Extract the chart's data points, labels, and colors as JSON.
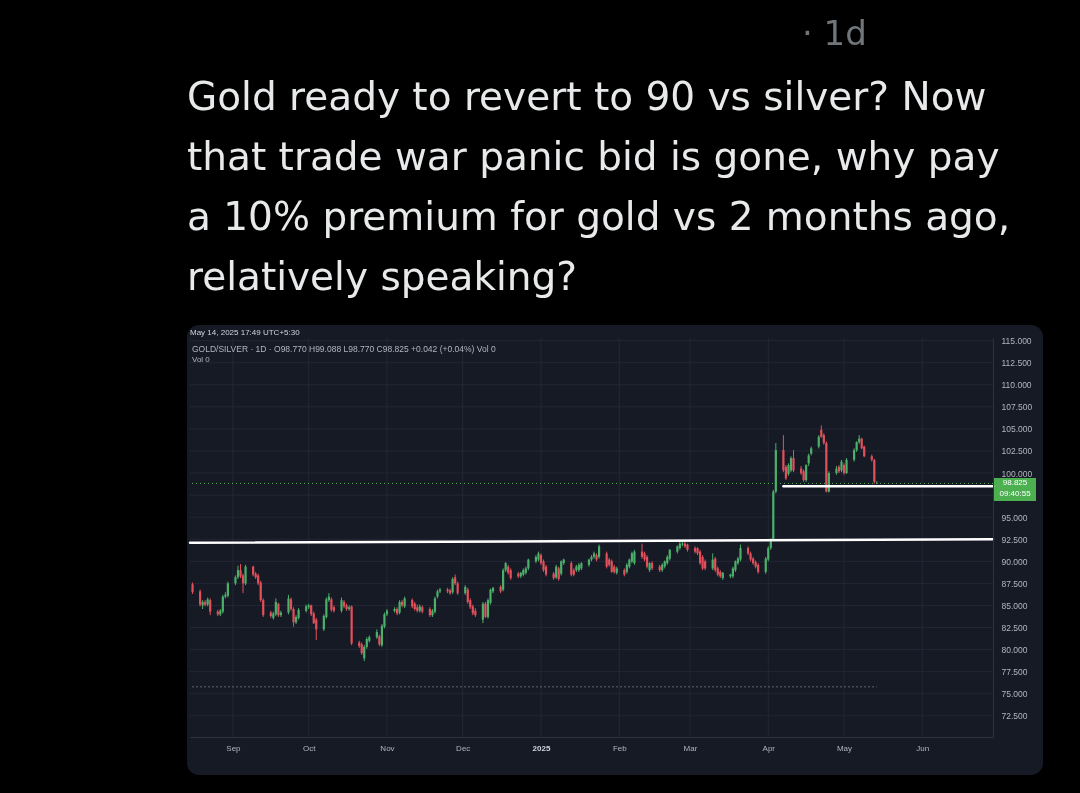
{
  "chart_data": {
    "type": "candlestick",
    "title": "Gold ready to revert to 90 vs silver? Now that trade war panic bid is gone, why pay a 10% premium for gold vs 2 months ago, relatively speaking?",
    "subtitle": "GOLD/SILVER · 1D · O98.770 H99.088 L98.770 C98.825 +0.042 (+0.04%) Vol 0",
    "annotations": [
      "May 14, 2025 17:49 UTC+5:30",
      "Vol 0",
      "· 1d",
      "09:40:55"
    ],
    "xlim": [
      "2024-08-15",
      "2025-06-29"
    ],
    "xticks": [
      {
        "value": "2024-09-01",
        "label": "Sep"
      },
      {
        "value": "2024-10-01",
        "label": "Oct"
      },
      {
        "value": "2024-11-01",
        "label": "Nov"
      },
      {
        "value": "2024-12-01",
        "label": "Dec"
      },
      {
        "value": "2025-01-01",
        "label": "2025"
      },
      {
        "value": "2025-02-01",
        "label": "Feb"
      },
      {
        "value": "2025-03-01",
        "label": "Mar"
      },
      {
        "value": "2025-04-01",
        "label": "Apr"
      },
      {
        "value": "2025-05-01",
        "label": "May"
      },
      {
        "value": "2025-06-01",
        "label": "Jun"
      }
    ],
    "ylim": [
      70.1,
      115.3
    ],
    "yticks": [
      {
        "value": 72.5,
        "label": "72.500"
      },
      {
        "value": 75,
        "label": "75.000"
      },
      {
        "value": 77.5,
        "label": "77.500"
      },
      {
        "value": 80,
        "label": "80.000"
      },
      {
        "value": 82.5,
        "label": "82.500"
      },
      {
        "value": 85,
        "label": "85.000"
      },
      {
        "value": 87.5,
        "label": "87.500"
      },
      {
        "value": 90,
        "label": "90.000"
      },
      {
        "value": 92.5,
        "label": "92.500"
      },
      {
        "value": 95,
        "label": "95.000"
      },
      {
        "value": 97.5,
        "label": null
      },
      {
        "value": 100,
        "label": "100.000"
      },
      {
        "value": 102.5,
        "label": "102.500"
      },
      {
        "value": 105,
        "label": "105.000"
      },
      {
        "value": 107.5,
        "label": "107.500"
      },
      {
        "value": 110,
        "label": "110.000"
      },
      {
        "value": 112.5,
        "label": "112.500"
      },
      {
        "value": 115,
        "label": "115.000"
      }
    ],
    "grid": true,
    "x": [
      "2024-08-16",
      "2024-08-19",
      "2024-08-20",
      "2024-08-21",
      "2024-08-22",
      "2024-08-23",
      "2024-08-26",
      "2024-08-27",
      "2024-08-28",
      "2024-08-29",
      "2024-08-30",
      "2024-09-02",
      "2024-09-03",
      "2024-09-04",
      "2024-09-05",
      "2024-09-06",
      "2024-09-09",
      "2024-09-10",
      "2024-09-11",
      "2024-09-12",
      "2024-09-13",
      "2024-09-16",
      "2024-09-17",
      "2024-09-18",
      "2024-09-19",
      "2024-09-20",
      "2024-09-23",
      "2024-09-24",
      "2024-09-25",
      "2024-09-26",
      "2024-09-27",
      "2024-09-30",
      "2024-10-01",
      "2024-10-02",
      "2024-10-03",
      "2024-10-04",
      "2024-10-07",
      "2024-10-08",
      "2024-10-09",
      "2024-10-10",
      "2024-10-11",
      "2024-10-14",
      "2024-10-15",
      "2024-10-16",
      "2024-10-17",
      "2024-10-18",
      "2024-10-21",
      "2024-10-22",
      "2024-10-23",
      "2024-10-24",
      "2024-10-25",
      "2024-10-28",
      "2024-10-29",
      "2024-10-30",
      "2024-10-31",
      "2024-11-01",
      "2024-11-04",
      "2024-11-05",
      "2024-11-06",
      "2024-11-07",
      "2024-11-08",
      "2024-11-11",
      "2024-11-12",
      "2024-11-13",
      "2024-11-14",
      "2024-11-15",
      "2024-11-18",
      "2024-11-19",
      "2024-11-20",
      "2024-11-21",
      "2024-11-22",
      "2024-11-25",
      "2024-11-26",
      "2024-11-27",
      "2024-11-28",
      "2024-11-29",
      "2024-12-02",
      "2024-12-03",
      "2024-12-04",
      "2024-12-05",
      "2024-12-06",
      "2024-12-09",
      "2024-12-10",
      "2024-12-11",
      "2024-12-12",
      "2024-12-13",
      "2024-12-16",
      "2024-12-17",
      "2024-12-18",
      "2024-12-19",
      "2024-12-20",
      "2024-12-23",
      "2024-12-24",
      "2024-12-25",
      "2024-12-26",
      "2024-12-27",
      "2024-12-30",
      "2024-12-31",
      "2025-01-01",
      "2025-01-02",
      "2025-01-03",
      "2025-01-06",
      "2025-01-07",
      "2025-01-08",
      "2025-01-09",
      "2025-01-10",
      "2025-01-13",
      "2025-01-14",
      "2025-01-15",
      "2025-01-16",
      "2025-01-17",
      "2025-01-20",
      "2025-01-21",
      "2025-01-22",
      "2025-01-23",
      "2025-01-24",
      "2025-01-27",
      "2025-01-28",
      "2025-01-29",
      "2025-01-30",
      "2025-01-31",
      "2025-02-03",
      "2025-02-04",
      "2025-02-05",
      "2025-02-06",
      "2025-02-07",
      "2025-02-10",
      "2025-02-11",
      "2025-02-12",
      "2025-02-13",
      "2025-02-14",
      "2025-02-17",
      "2025-02-18",
      "2025-02-19",
      "2025-02-20",
      "2025-02-21",
      "2025-02-24",
      "2025-02-25",
      "2025-02-26",
      "2025-02-27",
      "2025-02-28",
      "2025-03-03",
      "2025-03-04",
      "2025-03-05",
      "2025-03-06",
      "2025-03-07",
      "2025-03-10",
      "2025-03-11",
      "2025-03-12",
      "2025-03-13",
      "2025-03-14",
      "2025-03-17",
      "2025-03-18",
      "2025-03-19",
      "2025-03-20",
      "2025-03-21",
      "2025-03-24",
      "2025-03-25",
      "2025-03-26",
      "2025-03-27",
      "2025-03-28",
      "2025-03-31",
      "2025-04-01",
      "2025-04-02",
      "2025-04-03",
      "2025-04-04",
      "2025-04-07",
      "2025-04-08",
      "2025-04-09",
      "2025-04-10",
      "2025-04-11",
      "2025-04-14",
      "2025-04-15",
      "2025-04-16",
      "2025-04-17",
      "2025-04-18",
      "2025-04-21",
      "2025-04-22",
      "2025-04-23",
      "2025-04-24",
      "2025-04-25",
      "2025-04-28",
      "2025-04-29",
      "2025-04-30",
      "2025-05-01",
      "2025-05-02",
      "2025-05-05",
      "2025-05-06",
      "2025-05-07",
      "2025-05-08",
      "2025-05-09",
      "2025-05-12",
      "2025-05-13",
      "2025-05-14"
    ],
    "ohlc": [
      [
        87.4,
        87.6,
        86.3,
        86.5
      ],
      [
        86.6,
        86.8,
        84.9,
        85.1
      ],
      [
        85.0,
        85.6,
        84.6,
        85.4
      ],
      [
        85.4,
        85.6,
        84.9,
        85.1
      ],
      [
        85.1,
        85.9,
        84.9,
        85.7
      ],
      [
        85.6,
        85.8,
        83.9,
        84.3
      ],
      [
        84.3,
        84.5,
        83.8,
        84.0
      ],
      [
        84.0,
        84.6,
        83.8,
        84.4
      ],
      [
        84.3,
        86.2,
        84.1,
        86.0
      ],
      [
        86.0,
        86.5,
        85.8,
        86.2
      ],
      [
        86.1,
        87.7,
        85.9,
        87.5
      ],
      [
        87.5,
        88.4,
        87.3,
        88.2
      ],
      [
        88.2,
        89.5,
        88.0,
        89.0
      ],
      [
        89.0,
        89.7,
        88.1,
        88.3
      ],
      [
        88.4,
        88.6,
        86.4,
        87.5
      ],
      [
        87.5,
        89.6,
        87.3,
        89.4
      ],
      [
        89.4,
        89.5,
        88.3,
        88.5
      ],
      [
        88.6,
        88.8,
        88.0,
        88.2
      ],
      [
        88.4,
        88.6,
        87.3,
        87.5
      ],
      [
        87.6,
        87.8,
        85.4,
        85.6
      ],
      [
        85.6,
        85.8,
        83.7,
        83.9
      ],
      [
        84.2,
        84.4,
        83.6,
        83.8
      ],
      [
        83.6,
        84.3,
        83.4,
        84.1
      ],
      [
        84.0,
        85.8,
        83.8,
        85.4
      ],
      [
        85.2,
        85.3,
        83.7,
        83.9
      ],
      [
        83.9,
        84.4,
        83.7,
        84.2
      ],
      [
        84.2,
        86.2,
        84.0,
        85.8
      ],
      [
        85.7,
        85.9,
        84.4,
        84.6
      ],
      [
        84.6,
        84.8,
        82.6,
        83.1
      ],
      [
        83.1,
        83.9,
        82.9,
        83.7
      ],
      [
        83.6,
        84.7,
        83.4,
        84.5
      ],
      [
        84.4,
        85.1,
        84.2,
        84.9
      ],
      [
        84.8,
        85.2,
        84.6,
        85.0
      ],
      [
        85.0,
        85.1,
        83.8,
        84.0
      ],
      [
        84.1,
        84.3,
        82.9,
        83.0
      ],
      [
        83.4,
        83.6,
        81.1,
        82.3
      ],
      [
        82.3,
        84.0,
        82.1,
        83.8
      ],
      [
        83.7,
        85.9,
        83.5,
        85.7
      ],
      [
        85.6,
        86.4,
        85.4,
        86.0
      ],
      [
        85.7,
        85.9,
        84.3,
        84.5
      ],
      [
        84.8,
        85.0,
        84.2,
        84.4
      ],
      [
        84.4,
        85.9,
        84.2,
        85.6
      ],
      [
        85.4,
        85.6,
        84.7,
        84.9
      ],
      [
        85.0,
        85.2,
        84.4,
        84.6
      ],
      [
        84.6,
        85.0,
        84.4,
        84.8
      ],
      [
        84.9,
        85.0,
        80.5,
        80.7
      ],
      [
        80.8,
        81.0,
        80.2,
        80.4
      ],
      [
        80.6,
        80.8,
        79.4,
        79.6
      ],
      [
        79.0,
        80.5,
        78.7,
        80.3
      ],
      [
        80.3,
        81.4,
        80.1,
        81.2
      ],
      [
        81.0,
        81.6,
        80.8,
        81.4
      ],
      [
        81.4,
        82.3,
        81.2,
        82.0
      ],
      [
        81.5,
        81.7,
        80.4,
        80.6
      ],
      [
        80.5,
        82.9,
        80.3,
        82.7
      ],
      [
        82.6,
        84.2,
        82.4,
        84.0
      ],
      [
        84.0,
        84.6,
        83.8,
        84.4
      ],
      [
        84.4,
        84.8,
        84.2,
        84.6
      ],
      [
        84.6,
        84.8,
        83.9,
        84.1
      ],
      [
        84.2,
        85.6,
        84.0,
        85.4
      ],
      [
        85.4,
        85.6,
        84.8,
        85.0
      ],
      [
        84.9,
        86.0,
        84.7,
        85.8
      ],
      [
        85.6,
        85.8,
        84.7,
        84.9
      ],
      [
        85.2,
        85.4,
        84.4,
        84.6
      ],
      [
        84.8,
        85.1,
        84.2,
        84.4
      ],
      [
        84.4,
        85.1,
        84.2,
        84.9
      ],
      [
        84.8,
        85.0,
        84.1,
        84.3
      ],
      [
        84.6,
        84.8,
        83.7,
        83.9
      ],
      [
        83.9,
        84.6,
        83.7,
        84.4
      ],
      [
        84.3,
        86.0,
        84.1,
        85.8
      ],
      [
        86.0,
        86.8,
        85.8,
        86.6
      ],
      [
        86.6,
        87.0,
        86.4,
        86.8
      ],
      [
        86.8,
        87.0,
        86.4,
        86.6
      ],
      [
        86.7,
        86.9,
        86.2,
        86.4
      ],
      [
        86.5,
        88.2,
        86.3,
        88.0
      ],
      [
        88.2,
        88.5,
        87.3,
        87.5
      ],
      [
        87.5,
        87.7,
        86.2,
        86.4
      ],
      [
        86.4,
        87.3,
        86.2,
        87.1
      ],
      [
        86.8,
        87.0,
        85.2,
        85.4
      ],
      [
        85.6,
        85.8,
        84.6,
        84.8
      ],
      [
        84.9,
        85.1,
        83.9,
        84.1
      ],
      [
        84.4,
        84.7,
        83.7,
        83.9
      ],
      [
        83.4,
        85.4,
        83.0,
        85.2
      ],
      [
        85.2,
        85.4,
        83.6,
        83.7
      ],
      [
        83.7,
        85.8,
        83.5,
        85.6
      ],
      [
        85.3,
        86.9,
        85.1,
        86.8
      ],
      [
        86.6,
        87.1,
        86.4,
        87.0
      ],
      [
        87.1,
        87.3,
        86.4,
        86.6
      ],
      [
        86.8,
        89.2,
        86.6,
        89.0
      ],
      [
        89.0,
        89.9,
        88.8,
        89.8
      ],
      [
        89.4,
        89.6,
        88.5,
        88.7
      ],
      [
        89.0,
        89.2,
        87.9,
        88.1
      ],
      [
        88.6,
        88.8,
        88.1,
        88.3
      ],
      [
        88.3,
        88.8,
        88.1,
        88.7
      ],
      [
        88.5,
        89.2,
        88.3,
        89.0
      ],
      [
        88.7,
        89.4,
        88.5,
        89.2
      ],
      [
        89.2,
        90.3,
        89.0,
        90.2
      ],
      [
        90.0,
        90.7,
        89.8,
        90.5
      ],
      [
        90.2,
        91.1,
        90.0,
        90.9
      ],
      [
        90.7,
        90.9,
        89.6,
        89.8
      ],
      [
        90.0,
        90.2,
        88.8,
        89.0
      ],
      [
        89.4,
        89.6,
        88.3,
        88.5
      ],
      [
        88.6,
        88.8,
        87.9,
        88.1
      ],
      [
        88.2,
        89.6,
        88.0,
        89.4
      ],
      [
        89.2,
        89.4,
        87.8,
        88.0
      ],
      [
        88.6,
        90.1,
        88.4,
        90.0
      ],
      [
        89.8,
        90.3,
        89.6,
        90.2
      ],
      [
        89.8,
        90.0,
        88.3,
        88.5
      ],
      [
        89.0,
        89.2,
        88.3,
        88.5
      ],
      [
        89.0,
        89.6,
        88.8,
        89.4
      ],
      [
        89.0,
        89.8,
        88.8,
        89.6
      ],
      [
        89.2,
        89.9,
        89.0,
        89.8
      ],
      [
        89.6,
        90.3,
        89.4,
        90.2
      ],
      [
        90.2,
        90.7,
        90.0,
        90.5
      ],
      [
        90.5,
        91.1,
        90.3,
        90.9
      ],
      [
        90.7,
        90.9,
        90.0,
        90.2
      ],
      [
        90.5,
        91.9,
        90.3,
        91.7
      ],
      [
        90.9,
        91.1,
        89.2,
        89.4
      ],
      [
        90.2,
        90.4,
        89.4,
        89.6
      ],
      [
        90.0,
        90.2,
        88.7,
        88.8
      ],
      [
        89.4,
        89.6,
        88.6,
        88.8
      ],
      [
        88.7,
        89.4,
        88.5,
        89.2
      ],
      [
        89.0,
        89.2,
        88.3,
        88.5
      ],
      [
        88.8,
        89.8,
        88.6,
        89.6
      ],
      [
        89.4,
        90.3,
        89.2,
        90.2
      ],
      [
        90.0,
        91.1,
        89.8,
        90.9
      ],
      [
        89.8,
        91.3,
        89.6,
        91.1
      ],
      [
        91.1,
        92.0,
        90.3,
        90.5
      ],
      [
        90.9,
        91.1,
        90.0,
        90.2
      ],
      [
        90.5,
        90.7,
        89.2,
        89.4
      ],
      [
        89.0,
        89.9,
        88.8,
        89.8
      ],
      [
        89.8,
        90.0,
        89.0,
        89.2
      ],
      [
        89.4,
        89.6,
        88.8,
        89.0
      ],
      [
        89.0,
        89.8,
        88.8,
        89.6
      ],
      [
        89.4,
        90.1,
        89.2,
        90.0
      ],
      [
        89.8,
        90.7,
        89.6,
        90.5
      ],
      [
        90.3,
        91.4,
        90.1,
        91.3
      ],
      [
        91.1,
        91.8,
        90.9,
        91.7
      ],
      [
        91.5,
        92.2,
        91.3,
        92.0
      ],
      [
        91.9,
        92.2,
        91.7,
        92.0
      ],
      [
        92.0,
        92.2,
        91.5,
        91.7
      ],
      [
        91.9,
        92.0,
        91.1,
        91.3
      ],
      [
        91.5,
        91.7,
        90.9,
        91.1
      ],
      [
        91.5,
        91.6,
        90.7,
        90.9
      ],
      [
        91.1,
        91.3,
        89.6,
        89.8
      ],
      [
        90.5,
        90.7,
        89.0,
        89.2
      ],
      [
        90.0,
        90.2,
        89.0,
        89.2
      ],
      [
        89.2,
        90.9,
        89.0,
        90.2
      ],
      [
        90.3,
        90.5,
        88.8,
        89.0
      ],
      [
        89.2,
        89.4,
        88.3,
        88.5
      ],
      [
        88.8,
        89.0,
        88.1,
        88.3
      ],
      [
        88.1,
        88.8,
        87.9,
        88.7
      ],
      [
        88.3,
        88.6,
        88.1,
        88.5
      ],
      [
        88.3,
        89.4,
        88.1,
        89.2
      ],
      [
        89.0,
        90.1,
        88.8,
        90.0
      ],
      [
        89.8,
        90.5,
        89.6,
        90.3
      ],
      [
        90.2,
        91.9,
        90.0,
        91.5
      ],
      [
        91.5,
        91.7,
        90.7,
        90.9
      ],
      [
        90.9,
        91.1,
        90.0,
        90.2
      ],
      [
        90.3,
        90.5,
        89.6,
        89.8
      ],
      [
        89.9,
        90.1,
        89.2,
        89.4
      ],
      [
        89.6,
        89.8,
        88.6,
        88.8
      ],
      [
        88.8,
        90.5,
        88.6,
        90.3
      ],
      [
        90.2,
        91.7,
        90.0,
        91.5
      ],
      [
        91.5,
        92.6,
        91.3,
        92.4
      ],
      [
        92.5,
        98.1,
        92.3,
        97.9
      ],
      [
        97.9,
        103.4,
        97.7,
        102.6
      ],
      [
        102.6,
        104.3,
        100.1,
        100.3
      ],
      [
        100.7,
        100.9,
        99.2,
        99.4
      ],
      [
        99.9,
        101.1,
        99.7,
        100.9
      ],
      [
        100.3,
        101.9,
        100.1,
        101.7
      ],
      [
        101.7,
        102.6,
        100.1,
        100.3
      ],
      [
        100.5,
        100.8,
        99.8,
        100.0
      ],
      [
        100.2,
        100.4,
        99.0,
        99.2
      ],
      [
        99.2,
        101.0,
        99.0,
        100.9
      ],
      [
        101.1,
        102.2,
        100.8,
        102.0
      ],
      [
        102.2,
        103.0,
        102.0,
        102.8
      ],
      [
        103.0,
        104.3,
        102.8,
        104.1
      ],
      [
        104.9,
        105.4,
        104.0,
        104.1
      ],
      [
        104.3,
        104.5,
        103.2,
        103.4
      ],
      [
        103.4,
        103.6,
        97.8,
        97.9
      ],
      [
        97.9,
        100.2,
        97.8,
        100.0
      ],
      [
        100.0,
        100.8,
        99.8,
        100.5
      ],
      [
        100.7,
        100.9,
        100.0,
        100.2
      ],
      [
        100.3,
        101.5,
        100.1,
        101.3
      ],
      [
        100.9,
        101.1,
        99.8,
        100.0
      ],
      [
        100.0,
        101.7,
        99.9,
        101.5
      ],
      [
        101.5,
        102.8,
        101.3,
        102.6
      ],
      [
        102.6,
        103.6,
        102.4,
        103.5
      ],
      [
        103.5,
        104.3,
        103.3,
        103.9
      ],
      [
        103.9,
        104.0,
        102.7,
        102.8
      ],
      [
        103.0,
        103.1,
        101.8,
        101.9
      ],
      [
        101.9,
        102.1,
        101.3,
        101.5
      ],
      [
        101.5,
        101.6,
        98.8,
        99.0
      ],
      [
        98.77,
        99.088,
        98.77,
        98.825
      ]
    ],
    "colors": [
      "#e2505c",
      "#e2505c",
      "#4caf6a",
      "#e2505c",
      "#4caf6a",
      "#e2505c",
      "#e2505c",
      "#4caf6a",
      "#4caf6a",
      "#4caf6a",
      "#4caf6a",
      "#4caf6a",
      "#4caf6a",
      "#e2505c",
      "#e2505c",
      "#4caf6a",
      "#e2505c",
      "#e2505c",
      "#e2505c",
      "#e2505c",
      "#e2505c",
      "#e2505c",
      "#4caf6a",
      "#4caf6a",
      "#e2505c",
      "#4caf6a",
      "#4caf6a",
      "#e2505c",
      "#e2505c",
      "#4caf6a",
      "#4caf6a",
      "#4caf6a",
      "#4caf6a",
      "#e2505c",
      "#e2505c",
      "#e2505c",
      "#4caf6a",
      "#4caf6a",
      "#4caf6a",
      "#e2505c",
      "#e2505c",
      "#4caf6a",
      "#e2505c",
      "#e2505c",
      "#4caf6a",
      "#e2505c",
      "#e2505c",
      "#e2505c",
      "#4caf6a",
      "#4caf6a",
      "#4caf6a",
      "#4caf6a",
      "#e2505c",
      "#4caf6a",
      "#4caf6a",
      "#4caf6a",
      "#4caf6a",
      "#e2505c",
      "#4caf6a",
      "#e2505c",
      "#4caf6a",
      "#e2505c",
      "#e2505c",
      "#e2505c",
      "#4caf6a",
      "#e2505c",
      "#e2505c",
      "#4caf6a",
      "#4caf6a",
      "#4caf6a",
      "#4caf6a",
      "#e2505c",
      "#e2505c",
      "#4caf6a",
      "#e2505c",
      "#e2505c",
      "#4caf6a",
      "#e2505c",
      "#e2505c",
      "#e2505c",
      "#e2505c",
      "#4caf6a",
      "#e2505c",
      "#4caf6a",
      "#4caf6a",
      "#4caf6a",
      "#e2505c",
      "#4caf6a",
      "#4caf6a",
      "#e2505c",
      "#e2505c",
      "#e2505c",
      "#4caf6a",
      "#4caf6a",
      "#4caf6a",
      "#4caf6a",
      "#4caf6a",
      "#4caf6a",
      "#e2505c",
      "#e2505c",
      "#e2505c",
      "#e2505c",
      "#4caf6a",
      "#e2505c",
      "#4caf6a",
      "#4caf6a",
      "#e2505c",
      "#e2505c",
      "#4caf6a",
      "#4caf6a",
      "#4caf6a",
      "#4caf6a",
      "#4caf6a",
      "#4caf6a",
      "#e2505c",
      "#4caf6a",
      "#e2505c",
      "#e2505c",
      "#e2505c",
      "#e2505c",
      "#4caf6a",
      "#e2505c",
      "#4caf6a",
      "#4caf6a",
      "#4caf6a",
      "#4caf6a",
      "#e2505c",
      "#e2505c",
      "#e2505c",
      "#4caf6a",
      "#e2505c",
      "#e2505c",
      "#4caf6a",
      "#4caf6a",
      "#4caf6a",
      "#4caf6a",
      "#4caf6a",
      "#4caf6a",
      "#4caf6a",
      "#e2505c",
      "#e2505c",
      "#e2505c",
      "#e2505c",
      "#e2505c",
      "#e2505c",
      "#e2505c",
      "#4caf6a",
      "#e2505c",
      "#e2505c",
      "#e2505c",
      "#4caf6a",
      "#4caf6a",
      "#4caf6a",
      "#4caf6a",
      "#4caf6a",
      "#4caf6a",
      "#e2505c",
      "#e2505c",
      "#e2505c",
      "#e2505c",
      "#e2505c",
      "#4caf6a",
      "#4caf6a",
      "#4caf6a",
      "#4caf6a",
      "#4caf6a",
      "#e2505c",
      "#e2505c",
      "#4caf6a",
      "#4caf6a",
      "#e2505c",
      "#e2505c",
      "#e2505c",
      "#4caf6a",
      "#4caf6a",
      "#4caf6a",
      "#4caf6a",
      "#e2505c",
      "#e2505c",
      "#e2505c",
      "#4caf6a",
      "#4caf6a",
      "#e2505c",
      "#4caf6a",
      "#e2505c",
      "#4caf6a",
      "#4caf6a",
      "#4caf6a",
      "#4caf6a",
      "#e2505c",
      "#e2505c",
      "#e2505c",
      "#e2505c",
      "#4caf6a"
    ],
    "series": [
      {
        "type": "line",
        "x": [
          "2024-08-15",
          "2025-06-29"
        ],
        "values": [
          92.1,
          92.5
        ],
        "color": "#ffffff"
      },
      {
        "type": "line",
        "x": [
          "2025-04-07",
          "2025-06-29"
        ],
        "values": [
          98.5,
          98.5
        ],
        "color": "#ffffff"
      },
      {
        "type": "line",
        "x": [
          "2024-08-16",
          "2025-05-14"
        ],
        "values": [
          75.8,
          75.8
        ],
        "color": "#787b86",
        "line_style": "dotted"
      }
    ],
    "ref_lines": [
      {
        "axis": "y",
        "value": 98.825,
        "label": "98.825",
        "color": "#4caf50",
        "line_style": "dotted"
      }
    ]
  }
}
